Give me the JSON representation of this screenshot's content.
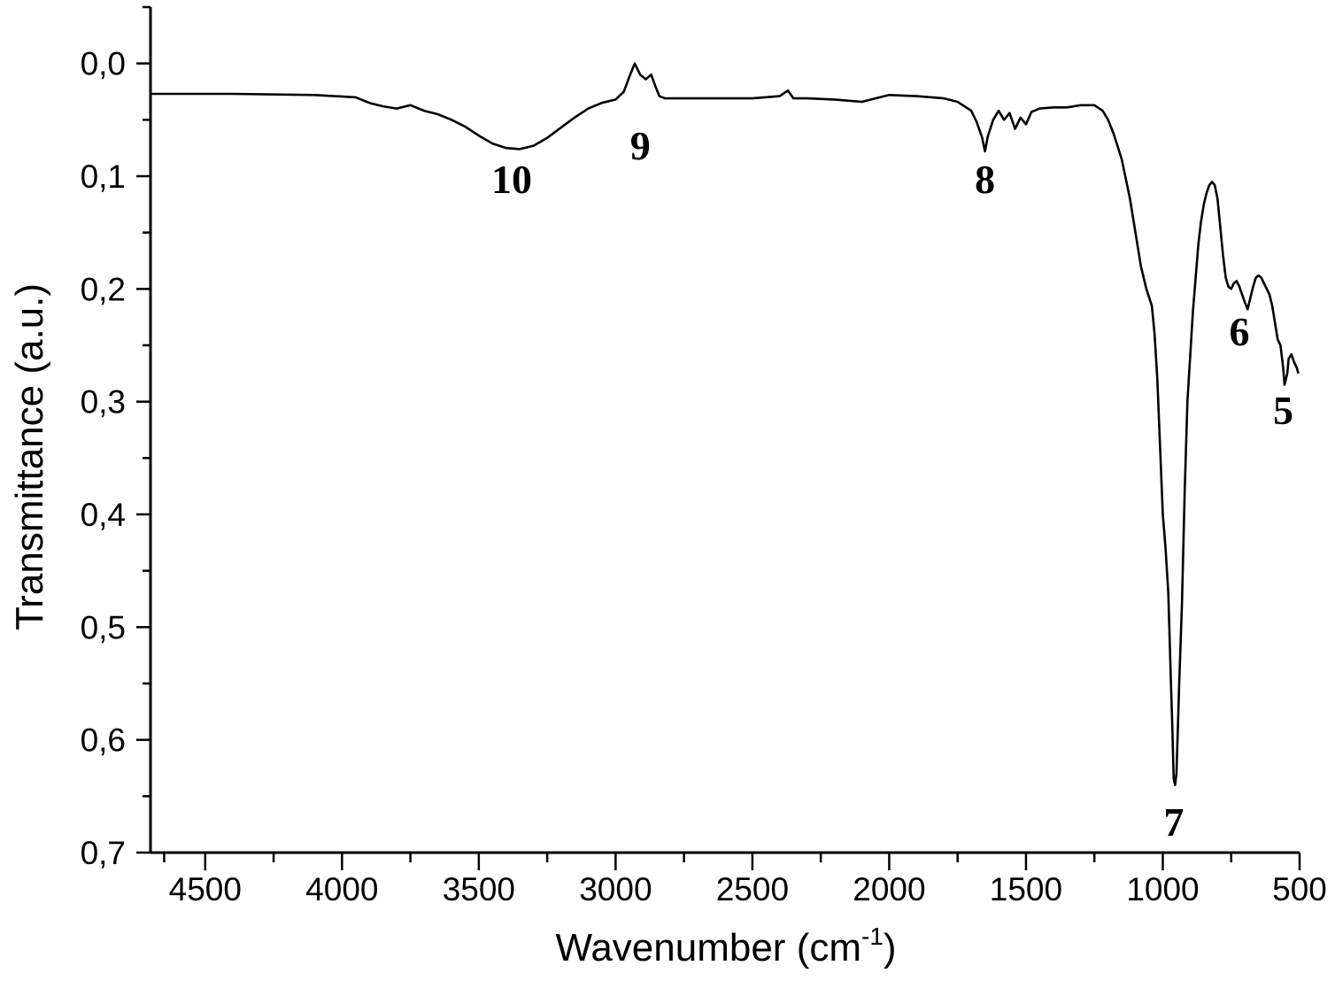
{
  "chart_data": {
    "type": "line",
    "title": "",
    "xlabel": "Wavenumber (cm",
    "xlabel_sup": "-1",
    "xlabel_suffix": ")",
    "ylabel": "Transmittance (a.u.)",
    "xlim": [
      4700,
      500
    ],
    "ylim": [
      -0.05,
      0.7
    ],
    "y_inverted": true,
    "grid": false,
    "legend": "none",
    "x_ticks": [
      4500,
      4000,
      3500,
      3000,
      2500,
      2000,
      1500,
      1000,
      500
    ],
    "x_tick_labels": [
      "4500",
      "4000",
      "3500",
      "3000",
      "2500",
      "2000",
      "1500",
      "1000",
      "500"
    ],
    "y_ticks": [
      0.0,
      0.1,
      0.2,
      0.3,
      0.4,
      0.5,
      0.6,
      0.7
    ],
    "y_tick_labels": [
      "0,0",
      "0,1",
      "0,2",
      "0,3",
      "0,4",
      "0,5",
      "0,6",
      "0,7"
    ],
    "series": [
      {
        "x": [
          4700,
          4400,
          4100,
          3950,
          3900,
          3850,
          3800,
          3750,
          3700,
          3650,
          3600,
          3550,
          3500,
          3450,
          3400,
          3350,
          3300,
          3250,
          3200,
          3150,
          3100,
          3050,
          3000,
          2970,
          2950,
          2930,
          2910,
          2890,
          2870,
          2855,
          2840,
          2820,
          2700,
          2500,
          2400,
          2370,
          2350,
          2300,
          2200,
          2100,
          2000,
          1900,
          1800,
          1750,
          1700,
          1680,
          1660,
          1650,
          1640,
          1620,
          1600,
          1580,
          1560,
          1540,
          1520,
          1500,
          1480,
          1450,
          1400,
          1350,
          1300,
          1250,
          1220,
          1200,
          1180,
          1150,
          1120,
          1100,
          1080,
          1060,
          1040,
          1030,
          1020,
          1010,
          1000,
          990,
          980,
          975,
          970,
          965,
          960,
          955,
          950,
          945,
          940,
          930,
          920,
          910,
          900,
          890,
          880,
          870,
          860,
          850,
          840,
          830,
          820,
          810,
          800,
          790,
          780,
          770,
          760,
          750,
          740,
          730,
          720,
          710,
          700,
          690,
          680,
          670,
          660,
          650,
          640,
          630,
          620,
          610,
          600,
          590,
          580,
          570,
          560,
          555,
          550,
          545,
          540,
          530,
          520,
          510,
          505
        ],
        "values": [
          0.027,
          0.027,
          0.028,
          0.03,
          0.035,
          0.038,
          0.04,
          0.037,
          0.042,
          0.045,
          0.05,
          0.056,
          0.064,
          0.071,
          0.075,
          0.076,
          0.073,
          0.066,
          0.057,
          0.048,
          0.04,
          0.035,
          0.032,
          0.025,
          0.012,
          0.0,
          0.01,
          0.014,
          0.01,
          0.02,
          0.029,
          0.031,
          0.031,
          0.031,
          0.029,
          0.024,
          0.031,
          0.031,
          0.032,
          0.034,
          0.028,
          0.029,
          0.031,
          0.034,
          0.042,
          0.052,
          0.066,
          0.078,
          0.065,
          0.05,
          0.042,
          0.05,
          0.044,
          0.058,
          0.048,
          0.054,
          0.043,
          0.04,
          0.039,
          0.039,
          0.037,
          0.037,
          0.042,
          0.05,
          0.062,
          0.085,
          0.12,
          0.15,
          0.18,
          0.2,
          0.215,
          0.24,
          0.28,
          0.34,
          0.4,
          0.43,
          0.47,
          0.51,
          0.55,
          0.59,
          0.635,
          0.64,
          0.63,
          0.59,
          0.55,
          0.48,
          0.38,
          0.3,
          0.26,
          0.22,
          0.19,
          0.16,
          0.14,
          0.125,
          0.115,
          0.108,
          0.105,
          0.108,
          0.12,
          0.145,
          0.17,
          0.19,
          0.198,
          0.2,
          0.195,
          0.193,
          0.198,
          0.205,
          0.212,
          0.218,
          0.208,
          0.198,
          0.19,
          0.188,
          0.19,
          0.195,
          0.2,
          0.205,
          0.215,
          0.23,
          0.245,
          0.25,
          0.27,
          0.285,
          0.28,
          0.275,
          0.262,
          0.258,
          0.265,
          0.27,
          0.275
        ]
      }
    ],
    "annotations": [
      {
        "text": "10",
        "x": 3380,
        "y": 0.115
      },
      {
        "text": "9",
        "x": 2910,
        "y": 0.085
      },
      {
        "text": "8",
        "x": 1650,
        "y": 0.115
      },
      {
        "text": "7",
        "x": 960,
        "y": 0.685
      },
      {
        "text": "6",
        "x": 720,
        "y": 0.25
      },
      {
        "text": "5",
        "x": 560,
        "y": 0.32
      }
    ]
  }
}
